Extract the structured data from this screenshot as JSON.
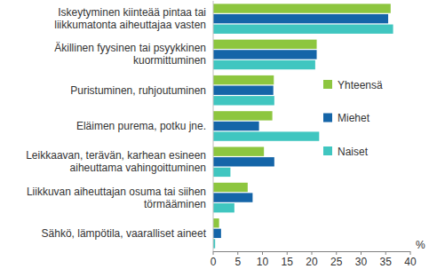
{
  "chart_data": {
    "type": "bar",
    "orientation": "horizontal",
    "categories": [
      "Iskeytyminen kiinteää pintaa tai liikkumatonta aiheuttajaa vasten",
      "Äkillinen fyysinen tai psyykkinen kuormittuminen",
      "Puristuminen, ruhjoutuminen",
      "Eläimen purema, potku jne.",
      "Leikkaavan, terävän, karhean esineen aiheuttama vahingoittuminen",
      "Liikkuvan aiheuttajan osuma tai siihen törmääminen",
      "Sähkö, lämpötila, vaaralliset aineet"
    ],
    "series": [
      {
        "name": "Yhteensä",
        "color": "#8dc63f",
        "values": [
          36,
          21,
          12.3,
          12,
          10.3,
          7,
          1.2
        ]
      },
      {
        "name": "Miehet",
        "color": "#1565a8",
        "values": [
          35.5,
          21,
          12.2,
          9.3,
          12.4,
          8,
          1.6
        ]
      },
      {
        "name": "Naiset",
        "color": "#40c6c0",
        "values": [
          36.5,
          20.7,
          12.4,
          21.5,
          3.5,
          4.3,
          0.4
        ]
      }
    ],
    "x_label": "%",
    "xlim": [
      0,
      40
    ],
    "xticks": [
      0,
      5,
      10,
      15,
      20,
      25,
      30,
      35,
      40
    ],
    "grid": false,
    "legend": "right"
  }
}
